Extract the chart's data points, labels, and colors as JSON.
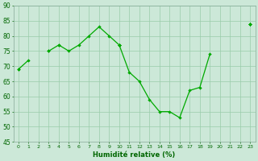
{
  "x": [
    0,
    1,
    2,
    3,
    4,
    5,
    6,
    7,
    8,
    9,
    10,
    11,
    12,
    13,
    14,
    15,
    16,
    17,
    18,
    19,
    20,
    21,
    22,
    23
  ],
  "line_main": [
    69,
    72,
    null,
    75,
    77,
    75,
    77,
    80,
    83,
    80,
    77,
    68,
    65,
    59,
    55,
    55,
    53,
    62,
    63,
    74,
    null,
    null,
    null,
    84
  ],
  "line_a": [
    null,
    null,
    null,
    null,
    null,
    null,
    null,
    null,
    null,
    null,
    77,
    null,
    null,
    null,
    null,
    null,
    null,
    null,
    null,
    null,
    null,
    null,
    null,
    84
  ],
  "line_b": [
    null,
    null,
    null,
    null,
    77,
    null,
    null,
    null,
    null,
    null,
    77,
    null,
    null,
    null,
    null,
    null,
    null,
    null,
    null,
    null,
    null,
    null,
    null,
    84
  ],
  "line_c": [
    null,
    null,
    null,
    75,
    null,
    null,
    null,
    null,
    null,
    null,
    77,
    null,
    null,
    null,
    null,
    null,
    null,
    null,
    null,
    null,
    null,
    null,
    null,
    84
  ],
  "line_d": [
    69,
    null,
    null,
    null,
    null,
    null,
    null,
    null,
    null,
    null,
    77,
    null,
    null,
    null,
    null,
    null,
    null,
    null,
    null,
    null,
    null,
    null,
    null,
    84
  ],
  "bg_color": "#cce8d8",
  "grid_color": "#99ccaa",
  "line_color": "#00aa00",
  "xlabel": "Humidité relative (%)",
  "ylim": [
    45,
    90
  ],
  "xlim": [
    -0.5,
    23.5
  ],
  "yticks": [
    45,
    50,
    55,
    60,
    65,
    70,
    75,
    80,
    85,
    90
  ],
  "xticks": [
    0,
    1,
    2,
    3,
    4,
    5,
    6,
    7,
    8,
    9,
    10,
    11,
    12,
    13,
    14,
    15,
    16,
    17,
    18,
    19,
    20,
    21,
    22,
    23
  ]
}
